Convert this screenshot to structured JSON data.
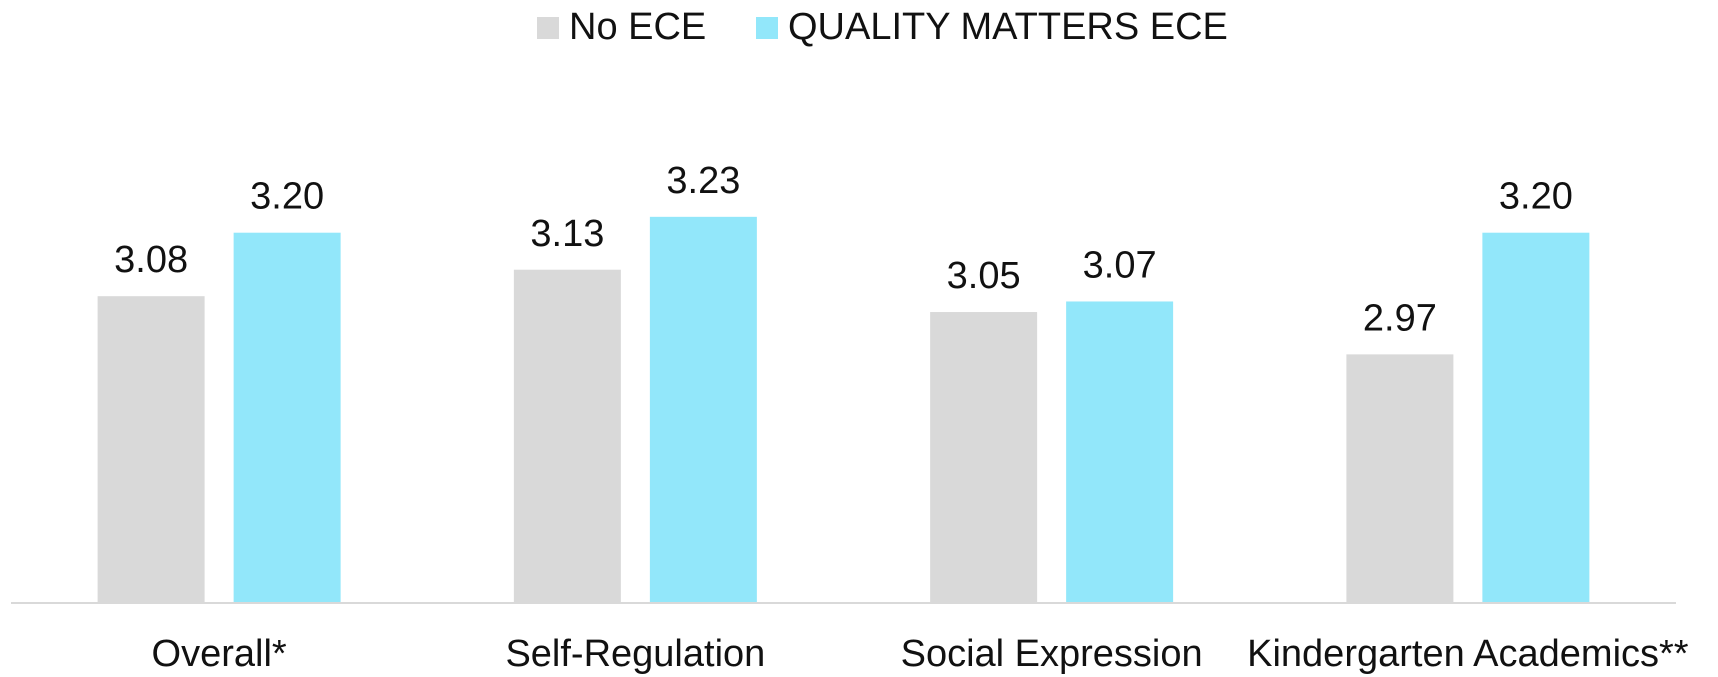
{
  "chart_data": {
    "type": "bar",
    "categories": [
      "Overall*",
      "Self-Regulation",
      "Social Expression",
      "Kindergarten Academics**"
    ],
    "series": [
      {
        "name": "No ECE",
        "color": "#d9d9d9",
        "values": [
          3.08,
          3.13,
          3.05,
          2.97
        ],
        "value_labels": [
          "3.08",
          "3.13",
          "3.05",
          "2.97"
        ]
      },
      {
        "name": "QUALITY MATTERS ECE",
        "color": "#92e7fa",
        "values": [
          3.2,
          3.23,
          3.07,
          3.2
        ],
        "value_labels": [
          "3.20",
          "3.23",
          "3.07",
          "3.20"
        ]
      }
    ],
    "ylim": [
      2.5,
      3.5
    ],
    "legend": "top"
  }
}
